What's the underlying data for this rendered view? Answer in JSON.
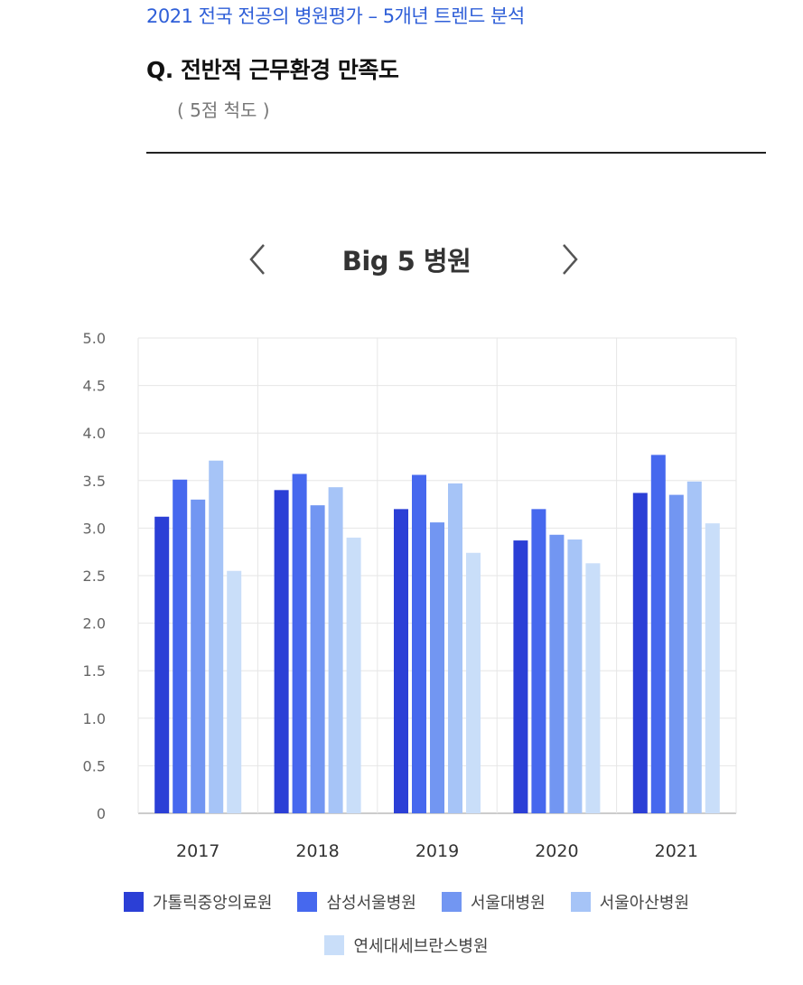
{
  "header": {
    "supertitle": "2021 전국 전공의 병원평가 – 5개년 트렌드 분석",
    "question": "Q. 전반적 근무환경 만족도",
    "scale_note": "( 5점 척도 )"
  },
  "nav": {
    "prev_icon": "chevron-left-icon",
    "next_icon": "chevron-right-icon"
  },
  "chart_data": {
    "type": "bar",
    "title": "Big 5 병원",
    "categories": [
      "2017",
      "2018",
      "2019",
      "2020",
      "2021"
    ],
    "series": [
      {
        "name": "가톨릭중앙의료원",
        "color": "#2b3fd6",
        "values": [
          3.12,
          3.4,
          3.2,
          2.87,
          3.37
        ]
      },
      {
        "name": "삼성서울병원",
        "color": "#4668ee",
        "values": [
          3.51,
          3.57,
          3.56,
          3.2,
          3.77
        ]
      },
      {
        "name": "서울대병원",
        "color": "#7296f2",
        "values": [
          3.3,
          3.24,
          3.06,
          2.93,
          3.35
        ]
      },
      {
        "name": "서울아산병원",
        "color": "#a6c4f7",
        "values": [
          3.71,
          3.43,
          3.47,
          2.88,
          3.49
        ]
      },
      {
        "name": "연세대세브란스병원",
        "color": "#c9def9",
        "values": [
          2.55,
          2.9,
          2.74,
          2.63,
          3.05
        ]
      }
    ],
    "yticks": [
      "0",
      "0.5",
      "1.0",
      "1.5",
      "2.0",
      "2.5",
      "3.0",
      "3.5",
      "4.0",
      "4.5",
      "5.0"
    ],
    "ylim": [
      0,
      5
    ],
    "xlabel": "",
    "ylabel": "",
    "grid": true,
    "legend_position": "bottom"
  }
}
